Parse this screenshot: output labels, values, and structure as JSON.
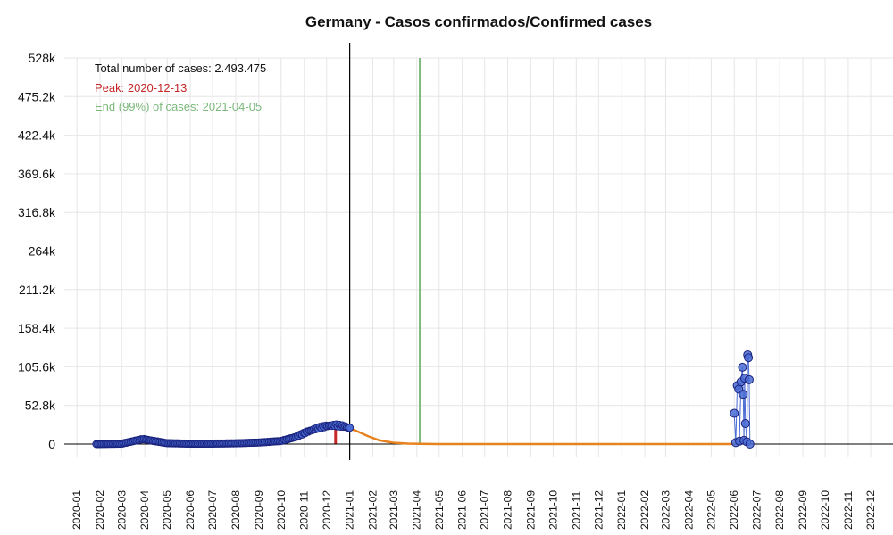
{
  "chart_data": {
    "type": "line",
    "title": "Germany - Casos confirmados/Confirmed cases",
    "xlabel": "",
    "ylabel": "",
    "xlim": [
      "2019-12-15",
      "2022-12-31"
    ],
    "ylim": [
      0,
      528000
    ],
    "grid": true,
    "y_ticks": [
      {
        "value": 0,
        "label": "0"
      },
      {
        "value": 52800,
        "label": "52.8k"
      },
      {
        "value": 105600,
        "label": "105.6k"
      },
      {
        "value": 158400,
        "label": "158.4k"
      },
      {
        "value": 211200,
        "label": "211.2k"
      },
      {
        "value": 264000,
        "label": "264k"
      },
      {
        "value": 316800,
        "label": "316.8k"
      },
      {
        "value": 369600,
        "label": "369.6k"
      },
      {
        "value": 422400,
        "label": "422.4k"
      },
      {
        "value": 475200,
        "label": "475.2k"
      },
      {
        "value": 528000,
        "label": "528k"
      }
    ],
    "x_ticks": [
      "2020-01",
      "2020-02",
      "2020-03",
      "2020-04",
      "2020-05",
      "2020-06",
      "2020-07",
      "2020-08",
      "2020-09",
      "2020-10",
      "2020-11",
      "2020-12",
      "2021-01",
      "2021-02",
      "2021-03",
      "2021-04",
      "2021-05",
      "2021-06",
      "2021-07",
      "2021-08",
      "2021-09",
      "2021-10",
      "2021-11",
      "2021-12",
      "2022-01",
      "2022-02",
      "2022-03",
      "2022-04",
      "2022-05",
      "2022-06",
      "2022-07",
      "2022-08",
      "2022-09",
      "2022-10",
      "2022-11",
      "2022-12"
    ],
    "annotations": {
      "total": "Total number of cases: 2.493.475",
      "peak": "Peak: 2020-12-13",
      "end": "End (99%) of cases: 2021-04-05"
    },
    "markers": {
      "today_line": "2021-01-01",
      "peak_date": "2020-12-13",
      "end_date": "2021-04-05"
    },
    "colors": {
      "points_fill": "#4a6cd4",
      "points_stroke": "#1a237e",
      "fit_line": "#e8821e",
      "peak": "#c62828",
      "end": "#7cb87c",
      "axis": "#000000",
      "grid": "#e6e6e6"
    },
    "series": [
      {
        "kind": "fit",
        "points": [
          [
            "2020-01-27",
            0
          ],
          [
            "2020-03-01",
            500
          ],
          [
            "2020-03-20",
            4500
          ],
          [
            "2020-03-30",
            6500
          ],
          [
            "2020-04-10",
            4500
          ],
          [
            "2020-05-01",
            1200
          ],
          [
            "2020-06-01",
            500
          ],
          [
            "2020-07-01",
            600
          ],
          [
            "2020-08-01",
            1000
          ],
          [
            "2020-09-01",
            2000
          ],
          [
            "2020-10-01",
            4000
          ],
          [
            "2020-10-20",
            9000
          ],
          [
            "2020-11-05",
            16000
          ],
          [
            "2020-11-20",
            21000
          ],
          [
            "2020-12-01",
            23500
          ],
          [
            "2020-12-13",
            24500
          ],
          [
            "2020-12-25",
            23000
          ],
          [
            "2021-01-10",
            18000
          ],
          [
            "2021-01-25",
            11000
          ],
          [
            "2021-02-10",
            5000
          ],
          [
            "2021-02-28",
            1800
          ],
          [
            "2021-03-20",
            600
          ],
          [
            "2021-04-05",
            200
          ],
          [
            "2021-05-01",
            50
          ],
          [
            "2021-08-01",
            0
          ],
          [
            "2022-06-01",
            0
          ]
        ]
      },
      {
        "kind": "observed",
        "points": [
          [
            "2022-06-01",
            42000
          ],
          [
            "2022-06-03",
            2000
          ],
          [
            "2022-06-05",
            80000
          ],
          [
            "2022-06-07",
            75000
          ],
          [
            "2022-06-08",
            4000
          ],
          [
            "2022-06-10",
            85000
          ],
          [
            "2022-06-12",
            105000
          ],
          [
            "2022-06-13",
            68000
          ],
          [
            "2022-06-14",
            5000
          ],
          [
            "2022-06-15",
            90000
          ],
          [
            "2022-06-16",
            28000
          ],
          [
            "2022-06-18",
            3000
          ],
          [
            "2022-06-19",
            122000
          ],
          [
            "2022-06-20",
            118000
          ],
          [
            "2022-06-21",
            88000
          ],
          [
            "2022-06-22",
            0
          ]
        ]
      }
    ]
  }
}
